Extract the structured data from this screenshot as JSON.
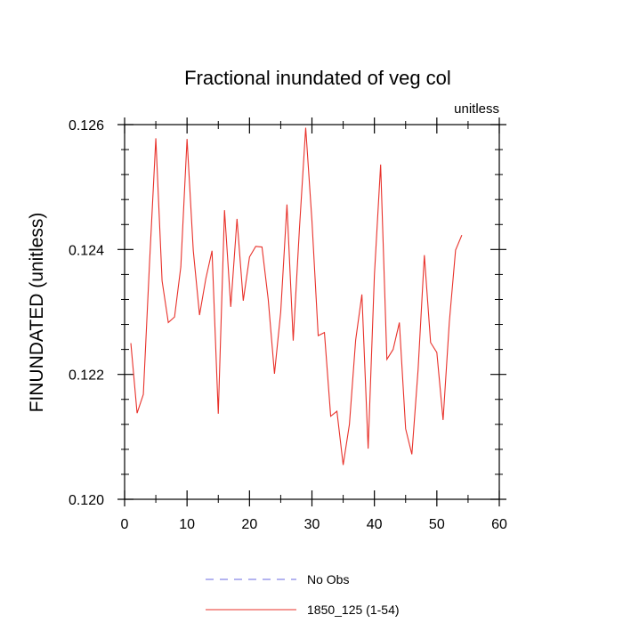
{
  "chart_data": {
    "type": "line",
    "title": "Fractional inundated of veg col",
    "units_label": "unitless",
    "xlabel": "",
    "ylabel": "FINUNDATED  (unitless)",
    "xlim": [
      0,
      60
    ],
    "ylim": [
      0.12,
      0.126
    ],
    "x_ticks": [
      0,
      10,
      20,
      30,
      40,
      50,
      60
    ],
    "x_tick_labels": [
      "0",
      "10",
      "20",
      "30",
      "40",
      "50",
      "60"
    ],
    "y_ticks": [
      0.12,
      0.122,
      0.124,
      0.126
    ],
    "y_tick_labels": [
      "0.120",
      "0.122",
      "0.124",
      "0.126"
    ],
    "x_minor_step": 5,
    "y_minor_step": 0.0004,
    "legend": [
      {
        "label": "No Obs",
        "style": "dashed",
        "color": "#6a6ae0"
      },
      {
        "label": "1850_125 (1-54)",
        "style": "solid",
        "color": "#e8312a"
      }
    ],
    "series": [
      {
        "name": "1850_125 (1-54)",
        "color": "#e8312a",
        "x": [
          1,
          2,
          3,
          4,
          5,
          6,
          7,
          8,
          9,
          10,
          11,
          12,
          13,
          14,
          15,
          16,
          17,
          18,
          19,
          20,
          21,
          22,
          23,
          24,
          25,
          26,
          27,
          28,
          29,
          30,
          31,
          32,
          33,
          34,
          35,
          36,
          37,
          38,
          39,
          40,
          41,
          42,
          43,
          44,
          45,
          46,
          47,
          48,
          49,
          50,
          51,
          52,
          53,
          54
        ],
        "values": [
          0.1225,
          0.12138,
          0.12168,
          0.1238,
          0.12578,
          0.1235,
          0.12283,
          0.12292,
          0.12372,
          0.12577,
          0.12398,
          0.12295,
          0.12353,
          0.12398,
          0.12137,
          0.12463,
          0.12308,
          0.12449,
          0.12318,
          0.12388,
          0.12405,
          0.12404,
          0.1232,
          0.12201,
          0.123,
          0.12472,
          0.12254,
          0.12434,
          0.12595,
          0.12446,
          0.12262,
          0.12267,
          0.12133,
          0.12141,
          0.12055,
          0.1212,
          0.12255,
          0.12328,
          0.12081,
          0.12359,
          0.12536,
          0.12224,
          0.1224,
          0.12283,
          0.12113,
          0.12072,
          0.12208,
          0.12391,
          0.12251,
          0.12235,
          0.12127,
          0.12284,
          0.12399,
          0.12423
        ]
      }
    ]
  }
}
